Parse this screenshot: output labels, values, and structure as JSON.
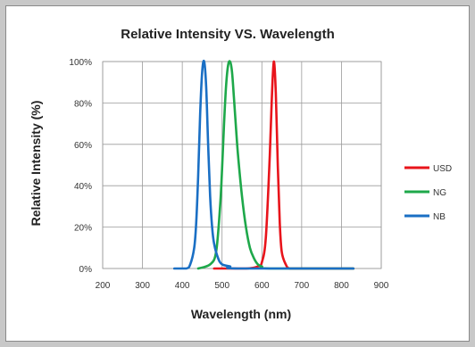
{
  "chart_data": {
    "type": "line",
    "title": "Relative Intensity VS. Wavelength",
    "xlabel": "Wavelength (nm)",
    "ylabel": "Relative Intensity (%)",
    "xlim": [
      200,
      900
    ],
    "ylim": [
      0,
      100
    ],
    "x_ticks": [
      "200",
      "300",
      "400",
      "500",
      "600",
      "700",
      "800",
      "900"
    ],
    "y_ticks": [
      "0%",
      "20%",
      "40%",
      "60%",
      "80%",
      "100%"
    ],
    "grid": true,
    "legend": "right",
    "series": [
      {
        "name": "USD",
        "color": "#e8141b",
        "x": [
          480,
          560,
          590,
          600,
          610,
          620,
          625,
          630,
          635,
          640,
          645,
          650,
          660,
          670,
          700,
          830
        ],
        "y": [
          0,
          0,
          1,
          3,
          15,
          55,
          82,
          100,
          85,
          50,
          22,
          8,
          2,
          0,
          0,
          0
        ]
      },
      {
        "name": "NG",
        "color": "#1ea84a",
        "x": [
          440,
          470,
          485,
          495,
          500,
          505,
          510,
          515,
          520,
          525,
          530,
          535,
          540,
          550,
          560,
          570,
          580,
          590,
          600,
          620,
          830
        ],
        "y": [
          0,
          2,
          8,
          30,
          48,
          70,
          88,
          98,
          100,
          95,
          82,
          68,
          55,
          35,
          20,
          10,
          5,
          2,
          1,
          0,
          0
        ]
      },
      {
        "name": "NB",
        "color": "#1a6fc4",
        "x": [
          380,
          410,
          420,
          430,
          435,
          440,
          445,
          450,
          455,
          460,
          465,
          470,
          475,
          480,
          490,
          500,
          520,
          540,
          830
        ],
        "y": [
          0,
          0,
          2,
          10,
          22,
          45,
          75,
          95,
          100,
          88,
          60,
          35,
          20,
          12,
          5,
          2,
          1,
          0,
          0
        ]
      }
    ]
  }
}
